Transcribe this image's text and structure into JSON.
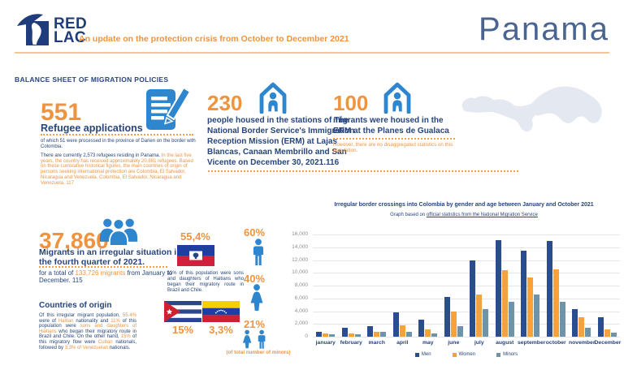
{
  "header": {
    "logo_line1": "RED",
    "logo_line2": "LAC",
    "subtitle": "An update on the protection crisis from October to December 2021",
    "country": "Panama"
  },
  "section_label": "BALANCE SHEET OF MIGRATION POLICIES",
  "refugees": {
    "number": "551",
    "label": "Refugee applications",
    "note1": "of which 51 were processed in the province of Darien on the border with Colombia.",
    "note2": [
      {
        "t": "There are currently 2,573 refugees residing in Panama. ",
        "c": "blue"
      },
      {
        "t": "In the last five years, the country has received approximately 20,881 refugees. Based on these cumulative historical figures, the main countries of origin of persons seeking international protection are Colombia, El Salvador, Nicaragua and Venezuela. Colombia, El Salvador, Nicaragua and Venezuela. 117",
        "c": "orange"
      }
    ]
  },
  "erm": {
    "number": "230",
    "text": "people housed in the stations of The National Border Service's Immigration Reception Mission (ERM) at Lajas Blancas, Canaan Membrillo and San Vicente on December 30, 2021.116"
  },
  "gualaca": {
    "number": "100",
    "text": "migrants were housed in the ERM at the Planes de Gualaca",
    "note": "However, there are no disaggregated statistics on this population."
  },
  "irregular": {
    "number": "37,860",
    "label": "Migrants in an irregular situation in the fourth quarter of 2021.",
    "note": [
      {
        "t": "for a total of ",
        "c": "blue"
      },
      {
        "t": "133,726 migrants",
        "c": "orange"
      },
      {
        "t": " from January to December. 115",
        "c": "blue"
      }
    ]
  },
  "origin": {
    "heading": "Countries of origin",
    "paragraph": [
      {
        "t": "Of this irregular migrant population, ",
        "c": "blue"
      },
      {
        "t": "55.4%",
        "c": "orange"
      },
      {
        "t": " were of ",
        "c": "blue"
      },
      {
        "t": "Haitian",
        "c": "orange"
      },
      {
        "t": " nationality and ",
        "c": "blue"
      },
      {
        "t": "11%",
        "c": "orange"
      },
      {
        "t": " of this population were ",
        "c": "blue"
      },
      {
        "t": "sons and daughters of Haitians",
        "c": "orange"
      },
      {
        "t": " who began their migratory route in Brazil and Chile. On the other hand, ",
        "c": "blue"
      },
      {
        "t": "15%",
        "c": "orange"
      },
      {
        "t": " of this migratory flow were ",
        "c": "blue"
      },
      {
        "t": "Cuban",
        "c": "orange"
      },
      {
        "t": " nationals, followed by ",
        "c": "blue"
      },
      {
        "t": "3.3% of Venezuelan",
        "c": "orange"
      },
      {
        "t": " nationals.",
        "c": "blue"
      }
    ]
  },
  "nationalities": {
    "haiti_pct": "55,4%",
    "haiti_caption": "11% of this population were sons and daughters of Haitians who began their migratory route in Brazil and Chile.",
    "cuba_pct": "15%",
    "venezuela_pct": "3,3%"
  },
  "gender": {
    "men_pct": "60%",
    "women_pct": "40%",
    "minors_pct": "21%",
    "minors_caption": "(of total number of minors)"
  },
  "chart_data": {
    "type": "bar",
    "title": "Irregular border crossings into Colombia by gender and age between January and October 2021",
    "source_prefix": "Graph based on ",
    "source_link": "official statistics from the National Migration Service",
    "categories": [
      "january",
      "february",
      "march",
      "april",
      "may",
      "june",
      "july",
      "august",
      "september",
      "october",
      "november",
      "December"
    ],
    "series": [
      {
        "name": "Men",
        "color": "#2a4d8f",
        "values": [
          800,
          1400,
          1600,
          3800,
          2700,
          6200,
          11900,
          15100,
          13400,
          15000,
          4300,
          3000
        ]
      },
      {
        "name": "Women",
        "color": "#f5a23c",
        "values": [
          450,
          500,
          800,
          1800,
          1100,
          4000,
          6600,
          10400,
          9300,
          10600,
          3000,
          1100
        ]
      },
      {
        "name": "Minors",
        "color": "#6e94aa",
        "values": [
          380,
          400,
          750,
          800,
          550,
          1600,
          4300,
          5500,
          6600,
          5500,
          1400,
          640
        ]
      }
    ],
    "ylim": [
      0,
      16000
    ],
    "ytick_step": 2000,
    "grid": true,
    "legend_position": "bottom"
  },
  "colors": {
    "navy": "#26457d",
    "orange": "#ee9440",
    "icon_blue": "#2e86cf",
    "bar_men": "#2a4d8f",
    "bar_women": "#f5a23c",
    "bar_minors": "#6e94aa",
    "map_gray": "#e4e8f1"
  }
}
